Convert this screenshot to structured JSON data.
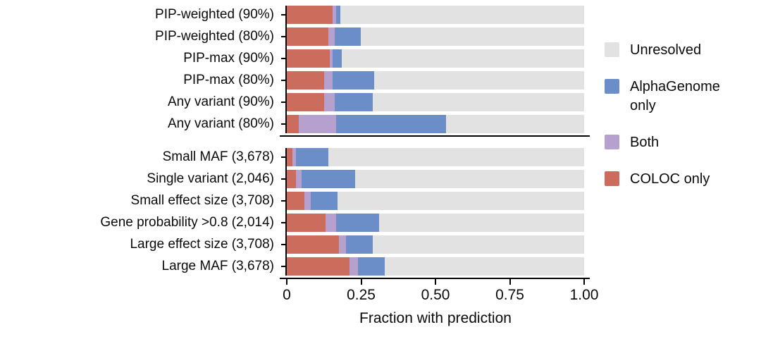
{
  "chart_data": {
    "type": "bar",
    "orientation": "horizontal",
    "stacked": true,
    "title": "",
    "xlabel": "Fraction with prediction",
    "ylabel": "",
    "xlim": [
      0,
      1.0
    ],
    "x_ticks": [
      0,
      0.25,
      0.5,
      0.75,
      1.0
    ],
    "x_tick_labels": [
      "0",
      "0.25",
      "0.50",
      "0.75",
      "1.00"
    ],
    "grid": false,
    "legend_position": "right",
    "segment_order": [
      "coloc_only",
      "both",
      "alphagenome_only",
      "unresolved"
    ],
    "colors": {
      "unresolved": "#e2e2e2",
      "alphagenome_only": "#6b8ec8",
      "both": "#b5a0ce",
      "coloc_only": "#cc6c5d"
    },
    "legend": [
      {
        "key": "unresolved",
        "label": "Unresolved"
      },
      {
        "key": "alphagenome_only",
        "label": "AlphaGenome only"
      },
      {
        "key": "both",
        "label": "Both"
      },
      {
        "key": "coloc_only",
        "label": "COLOC only"
      }
    ],
    "panels": [
      {
        "name": "threshold-panel",
        "rows": [
          {
            "label": "PIP-weighted (90%)",
            "coloc_only": 0.155,
            "both": 0.01,
            "alphagenome_only": 0.015,
            "unresolved": 0.82
          },
          {
            "label": "PIP-weighted (80%)",
            "coloc_only": 0.14,
            "both": 0.02,
            "alphagenome_only": 0.09,
            "unresolved": 0.75
          },
          {
            "label": "PIP-max (90%)",
            "coloc_only": 0.145,
            "both": 0.01,
            "alphagenome_only": 0.03,
            "unresolved": 0.815
          },
          {
            "label": "PIP-max (80%)",
            "coloc_only": 0.125,
            "both": 0.03,
            "alphagenome_only": 0.14,
            "unresolved": 0.705
          },
          {
            "label": "Any variant (90%)",
            "coloc_only": 0.125,
            "both": 0.035,
            "alphagenome_only": 0.13,
            "unresolved": 0.71
          },
          {
            "label": "Any variant (80%)",
            "coloc_only": 0.04,
            "both": 0.125,
            "alphagenome_only": 0.37,
            "unresolved": 0.465
          }
        ]
      },
      {
        "name": "subset-panel",
        "rows": [
          {
            "label": "Small MAF (3,678)",
            "coloc_only": 0.02,
            "both": 0.01,
            "alphagenome_only": 0.11,
            "unresolved": 0.86
          },
          {
            "label": "Single variant (2,046)",
            "coloc_only": 0.03,
            "both": 0.02,
            "alphagenome_only": 0.18,
            "unresolved": 0.77
          },
          {
            "label": "Small effect size (3,708)",
            "coloc_only": 0.06,
            "both": 0.02,
            "alphagenome_only": 0.09,
            "unresolved": 0.83
          },
          {
            "label": "Gene probability >0.8 (2,014)",
            "coloc_only": 0.13,
            "both": 0.035,
            "alphagenome_only": 0.145,
            "unresolved": 0.69
          },
          {
            "label": "Large effect size (3,708)",
            "coloc_only": 0.175,
            "both": 0.025,
            "alphagenome_only": 0.09,
            "unresolved": 0.71
          },
          {
            "label": "Large MAF (3,678)",
            "coloc_only": 0.21,
            "both": 0.03,
            "alphagenome_only": 0.09,
            "unresolved": 0.67
          }
        ]
      }
    ]
  }
}
